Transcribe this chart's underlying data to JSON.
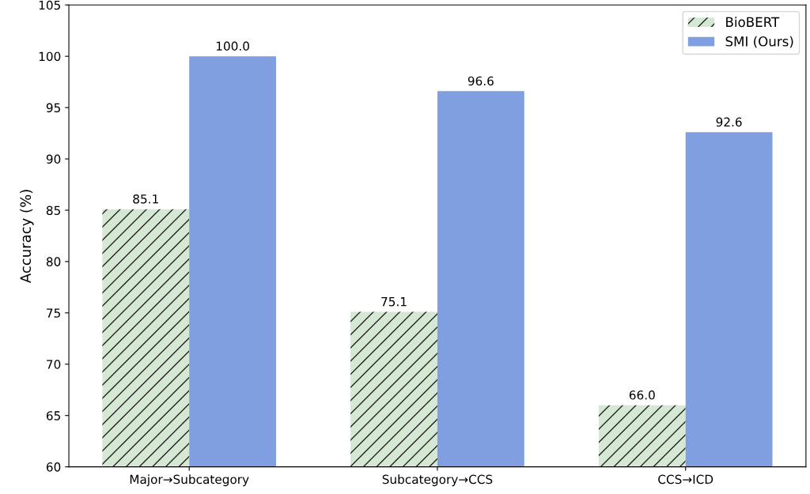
{
  "chart_data": {
    "type": "bar",
    "ylabel": "Accuracy (%)",
    "categories": [
      "Major→Subcategory",
      "Subcategory→CCS",
      "CCS→ICD"
    ],
    "series": [
      {
        "name": "BioBERT",
        "color": "#d5e8d4",
        "values": [
          85.1,
          75.1,
          66
        ],
        "value_labels": [
          "85.1",
          "75.1",
          "66.0"
        ]
      },
      {
        "name": "SMI (Ours)",
        "color": "#7f9fe0",
        "values": [
          100,
          96.6,
          92.6
        ],
        "value_labels": [
          "100.0",
          "96.6",
          "92.6"
        ]
      }
    ],
    "ylim": [
      60,
      105
    ],
    "yticks": [
      60,
      65,
      70,
      75,
      80,
      85,
      90,
      95,
      100,
      105
    ],
    "legend": "top right",
    "grid": false
  }
}
